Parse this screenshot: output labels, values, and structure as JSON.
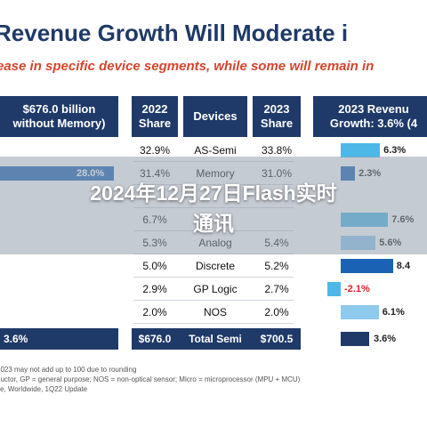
{
  "slide": {
    "title": "Revenue Growth Will Moderate i",
    "subtitle": "ease in specific device segments, while some will remain in"
  },
  "table": {
    "headers": {
      "col1": [
        "$676.0 billion",
        "without Memory)"
      ],
      "col2": [
        "2022",
        "Share"
      ],
      "col3": "Devices",
      "col4": [
        "2023",
        "Share"
      ],
      "col5": [
        "2023 Revenu",
        "Growth: 3.6% (4"
      ]
    },
    "rows": [
      {
        "share2022": "32.9%",
        "device": "AS-Semi",
        "share2023": "33.8%",
        "growth": "6.3%",
        "left_value": ""
      },
      {
        "share2022": "31.4%",
        "device": "Memory",
        "share2023": "31.0%",
        "growth": "2.3%",
        "left_value": "28.0%"
      },
      {
        "share2022": "",
        "device": "",
        "share2023": "",
        "growth": "",
        "left_value": ""
      },
      {
        "share2022": "6.7%",
        "device": "",
        "share2023": "",
        "growth": "7.6%",
        "left_value": ""
      },
      {
        "share2022": "5.3%",
        "device": "Analog",
        "share2023": "5.4%",
        "growth": "5.6%",
        "left_value": ""
      },
      {
        "share2022": "5.0%",
        "device": "Discrete",
        "share2023": "5.2%",
        "growth": "8.4",
        "left_value": ""
      },
      {
        "share2022": "2.9%",
        "device": "GP Logic",
        "share2023": "2.7%",
        "growth": "-2.1%",
        "left_value": ""
      },
      {
        "share2022": "2.0%",
        "device": "NOS",
        "share2023": "2.0%",
        "growth": "6.1%",
        "left_value": ""
      }
    ],
    "footer": {
      "left_value": "3.6%",
      "share2022": "$676.0",
      "device": "Total Semi",
      "share2023": "$700.5",
      "growth": "3.6%"
    }
  },
  "notes": [
    "2023 may not add up to 100 due to rounding",
    "ductor, GP = general purpose; NOS = non-optical sensor; Micro = microprocessor (MPU + MCU)",
    "ce, Worldwide, 1Q22 Update"
  ],
  "overlay": {
    "line1": "2024年12月27日Flash实时",
    "line2": "通讯"
  },
  "growth_bars": {
    "colors": {
      "light": "#4db8e8",
      "dark": "#1a63b4",
      "navy": "#1f3a68",
      "pale": "#8ec9ee",
      "negative_label": "#e02020"
    },
    "values": [
      6.3,
      2.3,
      0,
      7.6,
      5.6,
      8.4,
      -2.1,
      6.1
    ],
    "total_value": 3.6
  }
}
